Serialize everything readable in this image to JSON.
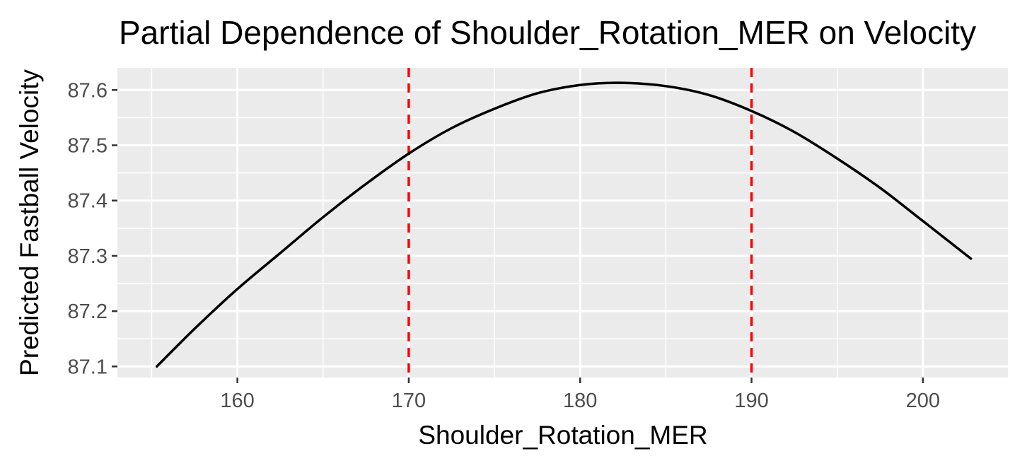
{
  "chart_data": {
    "type": "line",
    "title": "Partial Dependence of Shoulder_Rotation_MER on Velocity",
    "xlabel": "Shoulder_Rotation_MER",
    "ylabel": "Predicted Fastball Velocity",
    "xlim": [
      153,
      205
    ],
    "ylim": [
      87.08,
      87.64
    ],
    "x_ticks": [
      160,
      170,
      180,
      190,
      200
    ],
    "y_ticks": [
      87.1,
      87.2,
      87.3,
      87.4,
      87.5,
      87.6
    ],
    "grid": true,
    "legend": "none",
    "series": [
      {
        "x": [
          155.3,
          157.5,
          160,
          162.5,
          165,
          167.5,
          170,
          172.5,
          175,
          177.5,
          180,
          182.3,
          185,
          187.5,
          190,
          192.5,
          195,
          197.5,
          200,
          202.8
        ],
        "y": [
          87.1,
          87.168,
          87.24,
          87.305,
          87.37,
          87.43,
          87.485,
          87.531,
          87.566,
          87.594,
          87.609,
          87.613,
          87.607,
          87.591,
          87.562,
          87.524,
          87.476,
          87.423,
          87.363,
          87.295
        ],
        "color": "#000000"
      }
    ],
    "vlines": [
      {
        "x": 170,
        "color": "#ff0000",
        "style": "dashed"
      },
      {
        "x": 190,
        "color": "#ff0000",
        "style": "dashed"
      }
    ],
    "panel_background": "#ebebeb"
  }
}
